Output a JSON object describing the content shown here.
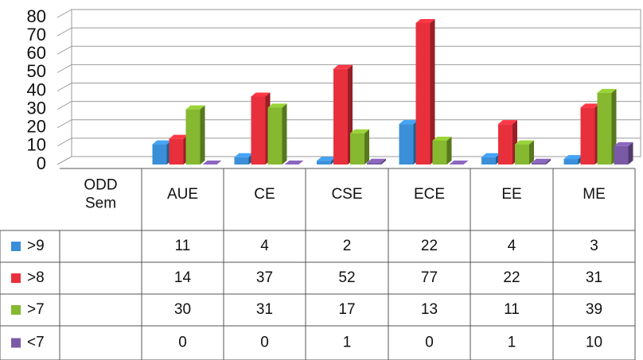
{
  "chart_data": {
    "type": "bar",
    "categories": [
      "ODD Sem",
      "AUE",
      "CE",
      "CSE",
      "ECE",
      "EE",
      "ME"
    ],
    "series": [
      {
        "name": ">9",
        "color": "#3a8fd8",
        "values": [
          null,
          11,
          4,
          2,
          22,
          4,
          3
        ]
      },
      {
        "name": ">8",
        "color": "#e8303d",
        "values": [
          null,
          14,
          37,
          52,
          77,
          22,
          31
        ]
      },
      {
        "name": ">7",
        "color": "#86b830",
        "values": [
          null,
          30,
          31,
          17,
          13,
          11,
          39
        ]
      },
      {
        "name": "<7",
        "color": "#7a5aa6",
        "values": [
          null,
          0,
          0,
          1,
          0,
          1,
          10
        ]
      }
    ],
    "ylim": [
      0,
      80
    ],
    "yticks": [
      0,
      10,
      20,
      30,
      40,
      50,
      60,
      70,
      80
    ],
    "grid": true
  }
}
